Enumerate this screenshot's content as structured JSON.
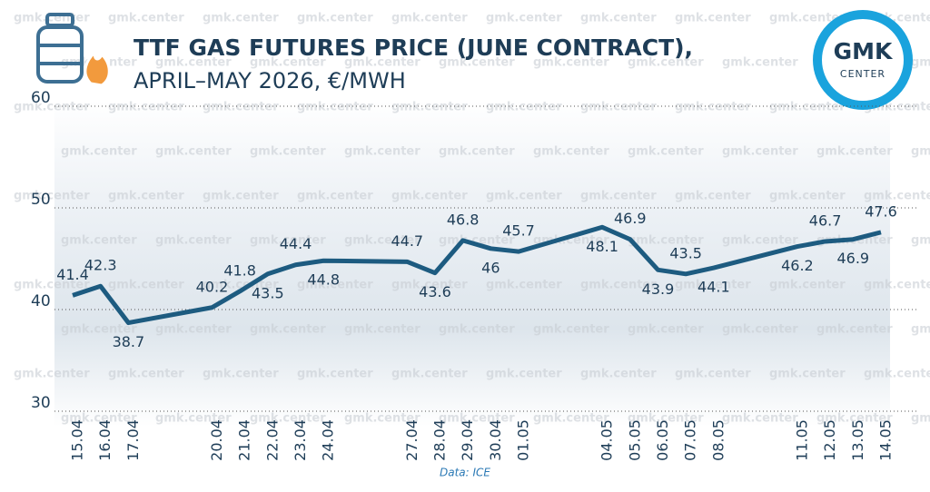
{
  "chart_data": {
    "type": "line",
    "title": "TTF GAS FUTURES PRICE (JUNE CONTRACT),",
    "subtitle": "APRIL–MAY 2026, €/MWH",
    "source": "Data: ICE",
    "watermark": "gmk.center",
    "logo": {
      "top": "GMK",
      "bottom": "CENTER"
    },
    "x": [
      "15.04",
      "16.04",
      "17.04",
      "20.04",
      "21.04",
      "22.04",
      "23.04",
      "24.04",
      "27.04",
      "28.04",
      "29.04",
      "30.04",
      "01.05",
      "04.05",
      "05.05",
      "06.05",
      "07.05",
      "08.05",
      "11.05",
      "12.05",
      "13.05",
      "14.05"
    ],
    "series": [
      {
        "name": "TTF June contract",
        "color": "#1d5b80",
        "values": [
          41.4,
          42.3,
          38.7,
          40.2,
          41.8,
          43.5,
          44.4,
          44.8,
          44.7,
          43.6,
          46.8,
          46,
          45.7,
          48.1,
          46.9,
          43.9,
          43.5,
          44.1,
          46.2,
          46.7,
          46.9,
          47.6
        ]
      }
    ],
    "ylim": [
      30,
      60
    ],
    "yticks": [
      30,
      40,
      50,
      60
    ],
    "grid": true
  }
}
